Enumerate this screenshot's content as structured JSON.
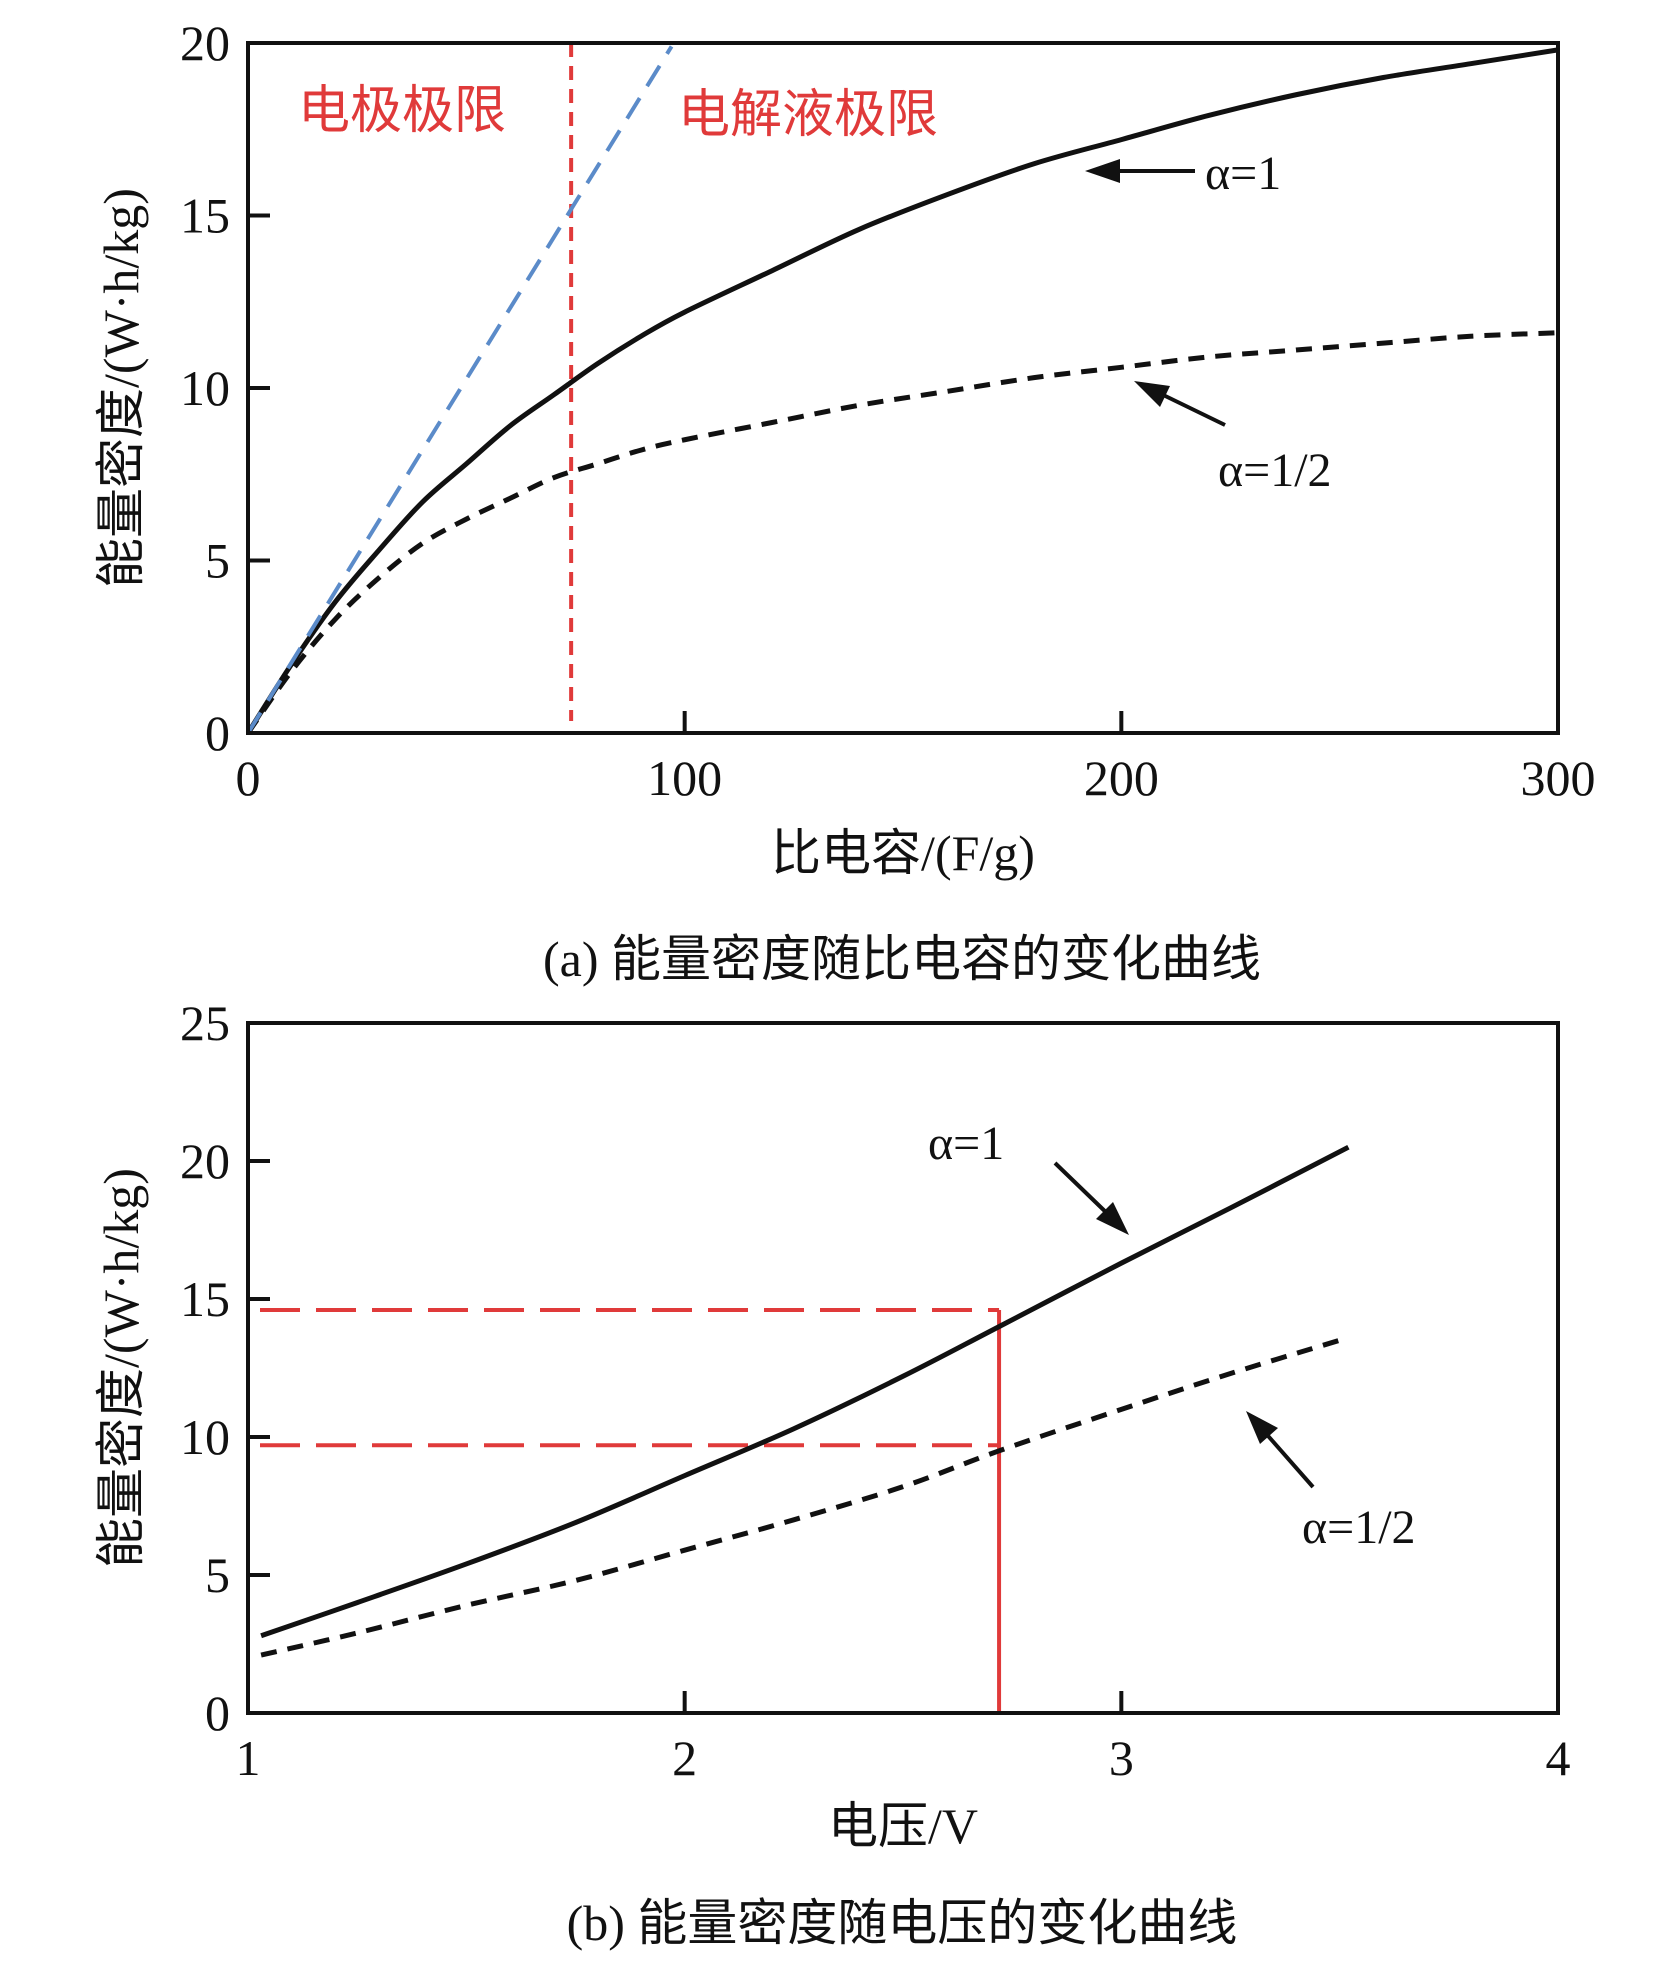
{
  "chart_data": [
    {
      "type": "line",
      "caption": "(a) 能量密度随比电容的变化曲线",
      "xlabel": "比电容/(F/g)",
      "ylabel": "能量密度/(W·h/kg)",
      "xlim": [
        0,
        300
      ],
      "ylim": [
        0,
        20
      ],
      "xticks": [
        0,
        100,
        200,
        300
      ],
      "yticks": [
        0,
        5,
        10,
        15,
        20
      ],
      "annotations": {
        "electrode_limit": "电极极限",
        "electrolyte_limit": "电解液极限"
      },
      "colors": {
        "main": "#111111",
        "limit_line": "#e03a3a",
        "linear": "#5b8bc9"
      },
      "series": [
        {
          "name": "α=1",
          "style": "solid",
          "x": [
            0,
            10,
            20,
            30,
            40,
            50,
            60,
            70,
            80,
            90,
            100,
            120,
            140,
            160,
            180,
            200,
            220,
            240,
            260,
            280,
            300
          ],
          "y": [
            0,
            2.0,
            3.8,
            5.3,
            6.7,
            7.8,
            8.9,
            9.8,
            10.7,
            11.5,
            12.2,
            13.4,
            14.6,
            15.6,
            16.5,
            17.2,
            17.9,
            18.5,
            19.0,
            19.4,
            19.8
          ]
        },
        {
          "name": "α=1/2",
          "style": "dashed",
          "x": [
            0,
            10,
            20,
            30,
            40,
            50,
            60,
            70,
            80,
            90,
            100,
            120,
            140,
            160,
            180,
            200,
            220,
            240,
            260,
            280,
            300
          ],
          "y": [
            0,
            1.8,
            3.3,
            4.5,
            5.5,
            6.2,
            6.8,
            7.4,
            7.8,
            8.2,
            8.5,
            9.0,
            9.5,
            9.9,
            10.3,
            10.6,
            10.9,
            11.1,
            11.3,
            11.5,
            11.6
          ]
        },
        {
          "style": "dashed-blue",
          "x": [
            0,
            97
          ],
          "y": [
            0,
            19.9
          ]
        }
      ],
      "vline_x": 74
    },
    {
      "type": "line",
      "caption": "(b) 能量密度随电压的变化曲线",
      "xlabel": "电压/V",
      "ylabel": "能量密度/(W·h/kg)",
      "xlim": [
        1,
        4
      ],
      "ylim": [
        0,
        25
      ],
      "xticks": [
        1,
        2,
        3,
        4
      ],
      "yticks": [
        0,
        5,
        10,
        15,
        20,
        25
      ],
      "colors": {
        "main": "#111111",
        "guide": "#e03a3a"
      },
      "series": [
        {
          "name": "α=1",
          "style": "solid",
          "x": [
            1.03,
            1.25,
            1.5,
            1.75,
            2.0,
            2.25,
            2.5,
            2.72,
            3.0,
            3.25,
            3.52
          ],
          "y": [
            2.8,
            4.0,
            5.4,
            6.9,
            8.6,
            10.3,
            12.2,
            14.0,
            16.3,
            18.3,
            20.5
          ]
        },
        {
          "name": "α=1/2",
          "style": "dashed",
          "x": [
            1.03,
            1.25,
            1.5,
            1.75,
            2.0,
            2.25,
            2.5,
            2.72,
            3.0,
            3.25,
            3.52
          ],
          "y": [
            2.1,
            2.9,
            3.9,
            4.8,
            5.9,
            7.0,
            8.2,
            9.5,
            11.0,
            12.3,
            13.6
          ]
        }
      ],
      "guide": {
        "x": 2.72,
        "y_values": [
          14.6,
          9.7
        ]
      }
    }
  ]
}
